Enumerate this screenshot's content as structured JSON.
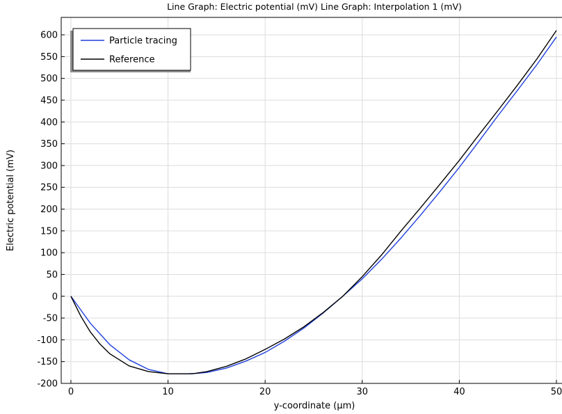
{
  "chart_data": {
    "type": "line",
    "title": "Line Graph: Electric potential (mV)  Line Graph: Interpolation 1 (mV)",
    "xlabel": "y-coordinate (µm)",
    "ylabel": "Electric potential (mV)",
    "xlim": [
      -1,
      50
    ],
    "ylim": [
      -200,
      640
    ],
    "xticks": [
      0,
      10,
      20,
      30,
      40,
      50
    ],
    "xtick_labels": [
      "0",
      "10",
      "20",
      "30",
      "40",
      "50"
    ],
    "yticks": [
      -200,
      -150,
      -100,
      -50,
      0,
      50,
      100,
      150,
      200,
      250,
      300,
      350,
      400,
      450,
      500,
      550,
      600
    ],
    "ytick_labels": [
      "-200",
      "-150",
      "-100",
      "-50",
      "0",
      "50",
      "100",
      "150",
      "200",
      "250",
      "300",
      "350",
      "400",
      "450",
      "500",
      "550",
      "600"
    ],
    "grid": true,
    "legend_position": "top-left",
    "series": [
      {
        "name": "Particle tracing",
        "color": "#1f3fdc",
        "x": [
          0,
          2,
          4,
          6,
          8,
          10,
          12,
          13,
          14,
          16,
          18,
          20,
          22,
          24,
          26,
          28,
          30,
          32,
          34,
          36,
          38,
          40,
          42,
          44,
          46,
          48,
          50
        ],
        "y": [
          0,
          -62,
          -111,
          -146,
          -168,
          -178,
          -178,
          -177,
          -175,
          -165,
          -149,
          -129,
          -103,
          -73,
          -38,
          0,
          40,
          85,
          134,
          186,
          240,
          296,
          355,
          415,
          473,
          532,
          595
        ]
      },
      {
        "name": "Reference",
        "color": "#000000",
        "x": [
          0,
          1,
          2,
          3,
          4,
          6,
          8,
          10,
          12,
          12.5,
          14,
          16,
          18,
          20,
          22,
          24,
          26,
          28,
          30,
          32,
          34,
          36,
          38,
          40,
          42,
          44,
          46,
          48,
          50
        ],
        "y": [
          0,
          -45,
          -82,
          -110,
          -132,
          -160,
          -173,
          -178,
          -178,
          -178,
          -173,
          -161,
          -144,
          -122,
          -98,
          -70,
          -37,
          0,
          45,
          95,
          150,
          203,
          257,
          312,
          370,
          427,
          485,
          545,
          610
        ]
      }
    ]
  }
}
